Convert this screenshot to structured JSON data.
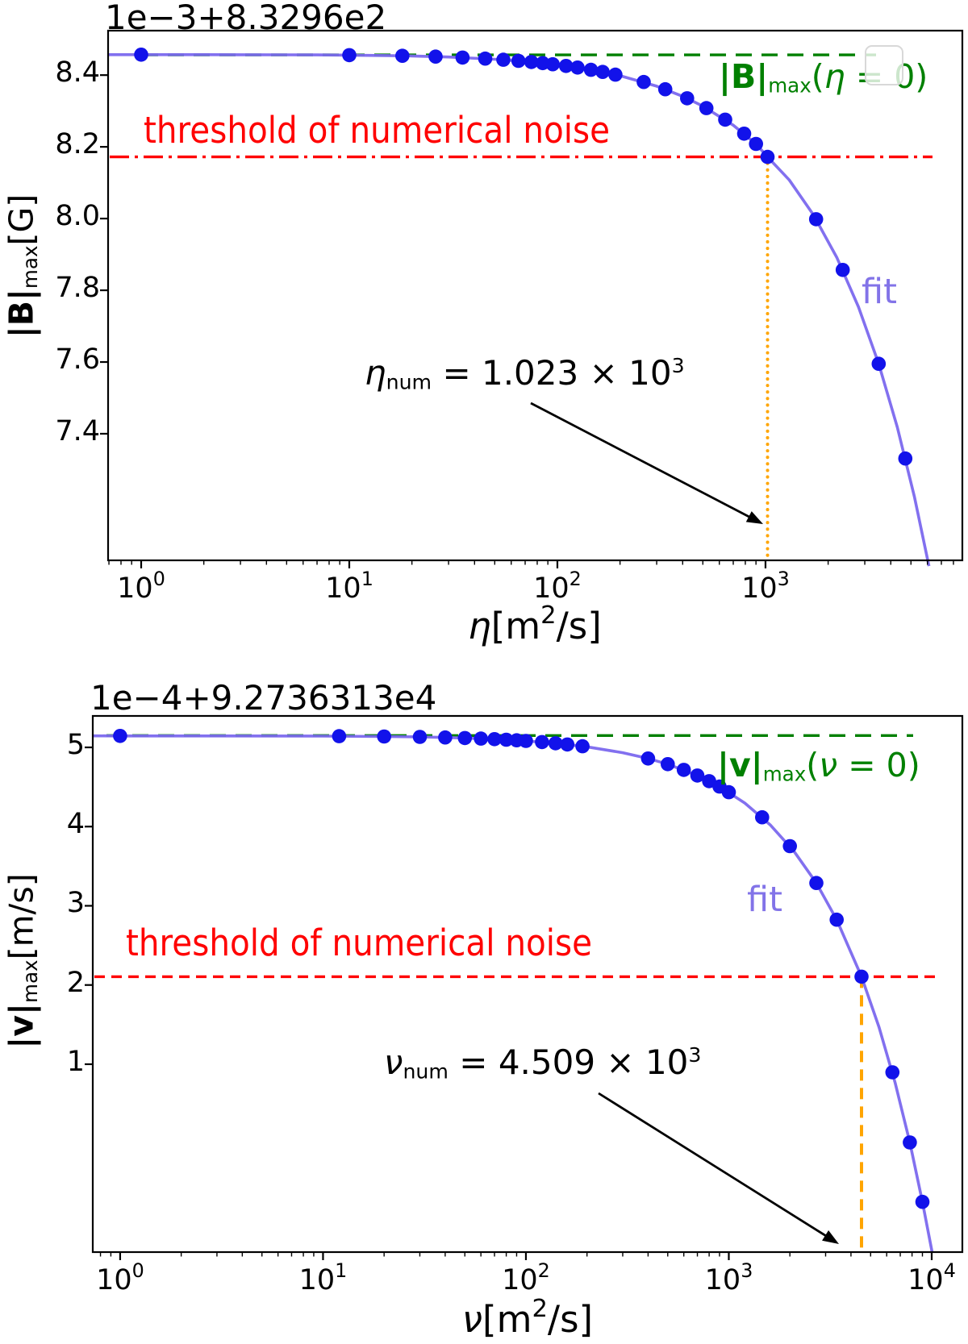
{
  "colors": {
    "points": "#1212ea",
    "fit_line": "#7b68ee",
    "plateau_line": "#008000",
    "threshold_line": "#ff0000",
    "marker_line": "#ffa500",
    "axis": "#000000",
    "legend_box_border": "#d8d8d8"
  },
  "chart_data": [
    {
      "type": "scatter",
      "x_scale": "log",
      "offset_label": "1e−3+8.3296e2",
      "ylabel": {
        "bar": "|B|",
        "sub": "max",
        "unit": "[G]"
      },
      "xlabel": {
        "sym": "η",
        "pre": "[m",
        "sup": "2",
        "post": "/s]"
      },
      "xlim": [
        0.6935,
        8830
      ],
      "ylim": [
        7.047,
        8.524
      ],
      "xticks": [
        {
          "base": "10",
          "exp": "0",
          "value": 1
        },
        {
          "base": "10",
          "exp": "1",
          "value": 10
        },
        {
          "base": "10",
          "exp": "2",
          "value": 100
        },
        {
          "base": "10",
          "exp": "3",
          "value": 1000
        }
      ],
      "yticks": [
        {
          "label": "8.4",
          "value": 8.4
        },
        {
          "label": "8.2",
          "value": 8.2
        },
        {
          "label": "8.0",
          "value": 8.0
        },
        {
          "label": "7.8",
          "value": 7.8
        },
        {
          "label": "7.6",
          "value": 7.6
        },
        {
          "label": "7.4",
          "value": 7.4
        }
      ],
      "plateau": {
        "value": 8.4565,
        "label": {
          "bar": "|B|",
          "sub": "max",
          "open": "(",
          "sym": "η",
          "close": " = 0)"
        }
      },
      "threshold": {
        "value": 8.172,
        "linestyle": "dashdot",
        "label": "threshold of numerical noise"
      },
      "vline": {
        "value": 1023,
        "linestyle": "dotted"
      },
      "annotation": {
        "sym": "η",
        "sub": "num",
        "body": " = 1.023 × 10",
        "sup": "3"
      },
      "fit_label": "fit",
      "has_legend_artifact": true,
      "scatter": [
        [
          1,
          8.457
        ],
        [
          10,
          8.4557
        ],
        [
          18,
          8.4538
        ],
        [
          26,
          8.4516
        ],
        [
          35,
          8.449
        ],
        [
          45,
          8.4459
        ],
        [
          55,
          8.4428
        ],
        [
          65,
          8.4397
        ],
        [
          75,
          8.4365
        ],
        [
          85,
          8.4334
        ],
        [
          95,
          8.4302
        ],
        [
          110,
          8.4256
        ],
        [
          125,
          8.421
        ],
        [
          145,
          8.4148
        ],
        [
          165,
          8.4088
        ],
        [
          190,
          8.4013
        ],
        [
          260,
          8.3807
        ],
        [
          330,
          8.3606
        ],
        [
          420,
          8.3353
        ],
        [
          520,
          8.308
        ],
        [
          640,
          8.2759
        ],
        [
          790,
          8.2366
        ],
        [
          900,
          8.2082
        ],
        [
          1023,
          8.172
        ],
        [
          1750,
          7.9982
        ],
        [
          2350,
          7.8567
        ],
        [
          3500,
          7.595
        ],
        [
          4700,
          7.3309
        ]
      ],
      "fit_curve": [
        [
          0.69,
          8.457
        ],
        [
          1,
          8.457
        ],
        [
          2,
          8.4569
        ],
        [
          3,
          8.4568
        ],
        [
          5,
          8.4566
        ],
        [
          7,
          8.4563
        ],
        [
          10,
          8.4557
        ],
        [
          15,
          8.4546
        ],
        [
          20,
          8.4533
        ],
        [
          30,
          8.4505
        ],
        [
          50,
          8.4443
        ],
        [
          70,
          8.4381
        ],
        [
          100,
          8.4287
        ],
        [
          150,
          8.4133
        ],
        [
          200,
          8.3983
        ],
        [
          300,
          8.3692
        ],
        [
          400,
          8.341
        ],
        [
          500,
          8.3135
        ],
        [
          700,
          8.2602
        ],
        [
          900,
          8.2082
        ],
        [
          1023,
          8.172
        ],
        [
          1300,
          8.1076
        ],
        [
          1700,
          8.0104
        ],
        [
          2200,
          7.8918
        ],
        [
          2800,
          7.7532
        ],
        [
          3500,
          7.595
        ],
        [
          4300,
          7.418
        ],
        [
          5200,
          7.223
        ],
        [
          6100,
          7.031
        ]
      ]
    },
    {
      "type": "scatter",
      "x_scale": "log",
      "offset_label": "1e−4+9.2736313e4",
      "ylabel": {
        "bar": "|v|",
        "sub": "max",
        "unit": "[m/s]"
      },
      "xlabel": {
        "sym": "ν",
        "pre": "[m",
        "sup": "2",
        "post": "/s]"
      },
      "xlim": [
        0.733,
        14160
      ],
      "ylim": [
        -1.372,
        5.397
      ],
      "xticks": [
        {
          "base": "10",
          "exp": "0",
          "value": 1
        },
        {
          "base": "10",
          "exp": "1",
          "value": 10
        },
        {
          "base": "10",
          "exp": "2",
          "value": 100
        },
        {
          "base": "10",
          "exp": "3",
          "value": 1000
        },
        {
          "base": "10",
          "exp": "4",
          "value": 10000
        }
      ],
      "yticks": [
        {
          "label": "5",
          "value": 5
        },
        {
          "label": "4",
          "value": 4
        },
        {
          "label": "3",
          "value": 3
        },
        {
          "label": "2",
          "value": 2
        },
        {
          "label": "1",
          "value": 1
        }
      ],
      "plateau": {
        "value": 5.15,
        "label": {
          "bar": "|v|",
          "sub": "max",
          "open": "(",
          "sym": "ν",
          "close": " = 0)"
        }
      },
      "threshold": {
        "value": 2.105,
        "linestyle": "dashed",
        "label": "threshold of numerical noise"
      },
      "vline": {
        "value": 4509,
        "linestyle": "dashed"
      },
      "annotation": {
        "sym": "ν",
        "sub": "num",
        "body": " = 4.509 × 10",
        "sup": "3"
      },
      "fit_label": "fit",
      "has_legend_artifact": false,
      "scatter": [
        [
          1,
          5.145
        ],
        [
          12,
          5.1419
        ],
        [
          20,
          5.1379
        ],
        [
          30,
          5.1319
        ],
        [
          40,
          5.1254
        ],
        [
          50,
          5.1184
        ],
        [
          60,
          5.1113
        ],
        [
          70,
          5.1041
        ],
        [
          80,
          5.0967
        ],
        [
          90,
          5.0893
        ],
        [
          100,
          5.0819
        ],
        [
          120,
          5.067
        ],
        [
          140,
          5.0518
        ],
        [
          160,
          5.0368
        ],
        [
          190,
          5.0145
        ],
        [
          400,
          4.86
        ],
        [
          500,
          4.788
        ],
        [
          600,
          4.716
        ],
        [
          700,
          4.645
        ],
        [
          800,
          4.574
        ],
        [
          900,
          4.505
        ],
        [
          1000,
          4.4345
        ],
        [
          1460,
          4.118
        ],
        [
          2000,
          3.753
        ],
        [
          2700,
          3.288
        ],
        [
          3400,
          2.825
        ],
        [
          4509,
          2.105
        ],
        [
          6400,
          0.898
        ],
        [
          7800,
          0.012
        ],
        [
          9000,
          -0.738
        ]
      ],
      "fit_curve": [
        [
          0.733,
          5.1451
        ],
        [
          1,
          5.145
        ],
        [
          3,
          5.1447
        ],
        [
          10,
          5.1427
        ],
        [
          20,
          5.1379
        ],
        [
          30,
          5.1319
        ],
        [
          40,
          5.1254
        ],
        [
          50,
          5.1184
        ],
        [
          70,
          5.1041
        ],
        [
          100,
          5.0819
        ],
        [
          150,
          5.0446
        ],
        [
          200,
          5.007
        ],
        [
          300,
          4.933
        ],
        [
          400,
          4.86
        ],
        [
          500,
          4.788
        ],
        [
          700,
          4.645
        ],
        [
          900,
          4.505
        ],
        [
          1200,
          4.297
        ],
        [
          1600,
          4.022
        ],
        [
          2100,
          3.685
        ],
        [
          2700,
          3.288
        ],
        [
          3400,
          2.825
        ],
        [
          4509,
          2.105
        ],
        [
          5500,
          1.468
        ],
        [
          6600,
          0.769
        ],
        [
          7800,
          0.012
        ],
        [
          9000,
          -0.738
        ],
        [
          10050,
          -1.372
        ]
      ]
    }
  ]
}
